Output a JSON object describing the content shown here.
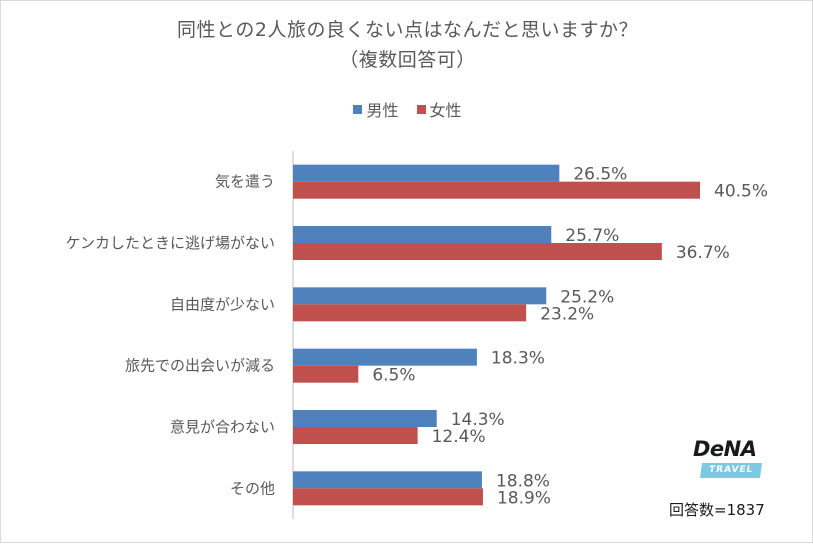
{
  "chart_data": {
    "type": "bar",
    "orientation": "horizontal",
    "title": "同性との2人旅の良くない点はなんだと思いますか？",
    "subtitle": "（複数回答可）",
    "categories": [
      "気を遣う",
      "ケンカしたときに逃げ場がない",
      "自由度が少ない",
      "旅先での出会いが減る",
      "意見が合わない",
      "その他"
    ],
    "series": [
      {
        "name": "男性",
        "color": "#4f81bd",
        "values": [
          26.5,
          25.7,
          25.2,
          18.3,
          14.3,
          18.8
        ],
        "labels": [
          "26.5%",
          "25.7%",
          "25.2%",
          "18.3%",
          "14.3%",
          "18.8%"
        ]
      },
      {
        "name": "女性",
        "color": "#c0504d",
        "values": [
          40.5,
          36.7,
          23.2,
          6.5,
          12.4,
          18.9
        ],
        "labels": [
          "40.5%",
          "36.7%",
          "23.2%",
          "6.5%",
          "12.4%",
          "18.9%"
        ]
      }
    ],
    "xlim": [
      0,
      50
    ],
    "legend_position": "top",
    "grid": false
  },
  "logo": {
    "brand": "DeNA",
    "sub": "TRAVEL"
  },
  "footnote": "回答数=1837"
}
